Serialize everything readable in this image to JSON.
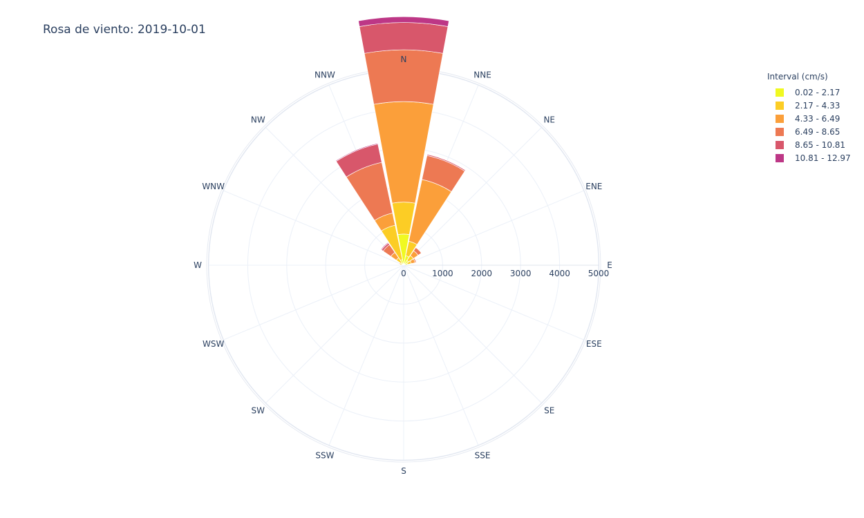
{
  "chart_data": {
    "type": "barpolar",
    "title": "Rosa de viento: 2019-10-01",
    "directions": [
      "N",
      "NNE",
      "NE",
      "ENE",
      "E",
      "ESE",
      "SE",
      "SSE",
      "S",
      "SSW",
      "SW",
      "WSW",
      "W",
      "WNW",
      "NW",
      "NNW"
    ],
    "radial_ticks": [
      "0",
      "1000",
      "2000",
      "3000",
      "4000",
      "5000"
    ],
    "radial_range": [
      0,
      5000
    ],
    "legend_title": "Interval (cm/s)",
    "series": [
      {
        "name": "0.02 - 2.17",
        "color": "#f0f921",
        "values": [
          800,
          250,
          150,
          100,
          0,
          0,
          0,
          0,
          0,
          0,
          0,
          0,
          0,
          50,
          80,
          150
        ]
      },
      {
        "name": "2.17 - 4.33",
        "color": "#fccd25",
        "values": [
          820,
          380,
          150,
          100,
          0,
          0,
          0,
          0,
          0,
          0,
          0,
          0,
          0,
          50,
          150,
          900
        ]
      },
      {
        "name": "4.33 - 6.49",
        "color": "#fb9f3a",
        "values": [
          2580,
          1620,
          150,
          100,
          0,
          0,
          0,
          0,
          0,
          0,
          0,
          0,
          0,
          20,
          170,
          320
        ]
      },
      {
        "name": "6.49 - 8.65",
        "color": "#ed7953",
        "values": [
          1330,
          630,
          100,
          30,
          0,
          0,
          0,
          0,
          0,
          0,
          0,
          0,
          0,
          0,
          240,
          1330
        ]
      },
      {
        "name": "8.65 - 10.81",
        "color": "#d8576b",
        "values": [
          700,
          30,
          0,
          0,
          0,
          0,
          0,
          0,
          0,
          0,
          0,
          0,
          0,
          0,
          50,
          480
        ]
      },
      {
        "name": "10.81 - 12.97",
        "color": "#bd3786",
        "values": [
          150,
          10,
          0,
          0,
          0,
          0,
          0,
          0,
          0,
          0,
          0,
          0,
          0,
          0,
          20,
          20
        ]
      }
    ]
  }
}
